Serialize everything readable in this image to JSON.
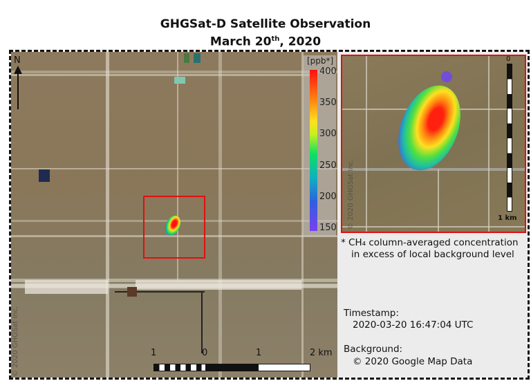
{
  "title": {
    "line1": "GHGSat-D Satellite Observation",
    "line2_pre": "March 20",
    "line2_sup": "th",
    "line2_post": ", 2020"
  },
  "map": {
    "north_label": "N",
    "colorbar": {
      "unit": "[ppb*]",
      "ticks": [
        "400",
        "350",
        "300",
        "250",
        "200",
        "150"
      ],
      "range": [
        150,
        400
      ],
      "colors": [
        "#7b3ff0",
        "#2f5fe0",
        "#10b0c0",
        "#10e060",
        "#ffe020",
        "#ff8010",
        "#ff1010"
      ]
    },
    "scale_labels": [
      "1",
      "0",
      "1",
      "2 km"
    ],
    "copyright": "© 2020 GHGSat Inc.",
    "highlight_color": "#e01010"
  },
  "inset": {
    "scale_top": "0",
    "scale_bottom": "1 km",
    "copyright": "© 2020 GHGSat Inc."
  },
  "panel": {
    "footnote_line1": "* CH₄ column-averaged concentration",
    "footnote_line2": "in excess of local background level",
    "timestamp_label": "Timestamp:",
    "timestamp_value": "2020-03-20 16:47:04 UTC",
    "background_label": "Background:",
    "background_value": "© 2020 Google Map Data"
  }
}
